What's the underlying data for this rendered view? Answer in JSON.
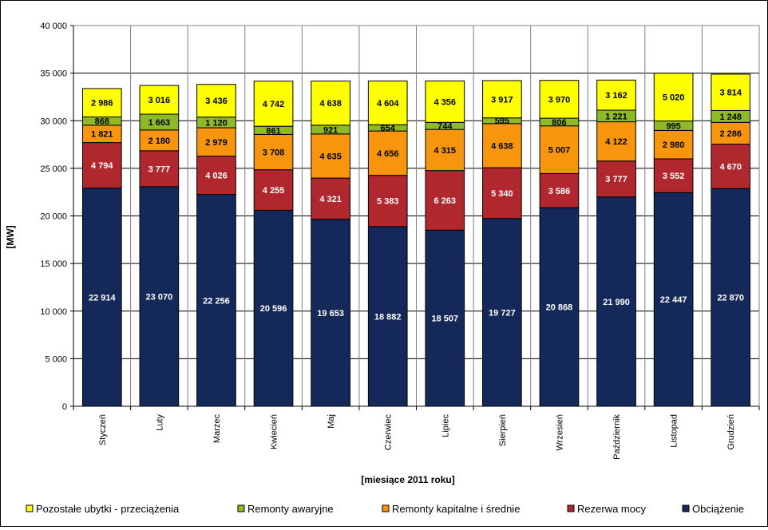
{
  "chart_data": {
    "type": "bar",
    "stacked": true,
    "xlabel": "[miesiące 2011  roku]",
    "ylabel": "[MW]",
    "ylim": [
      0,
      40000
    ],
    "yticks": [
      0,
      5000,
      10000,
      15000,
      20000,
      25000,
      30000,
      35000,
      40000
    ],
    "ytick_labels": [
      "0",
      "5 000",
      "10 000",
      "15 000",
      "20 000",
      "25 000",
      "30 000",
      "35 000",
      "40 000"
    ],
    "grid": true,
    "legend_position": "bottom",
    "categories": [
      "Styczeń",
      "Luty",
      "Marzec",
      "Kwiecień",
      "Maj",
      "Czerwiec",
      "Lipiec",
      "Sierpień",
      "Wrzesień",
      "Październik",
      "Listopad",
      "Grudzień"
    ],
    "series": [
      {
        "name": "Obciążenie",
        "color": "#14295a",
        "label_color": "#ffffff",
        "values": [
          22914,
          23070,
          22256,
          20596,
          19653,
          18882,
          18507,
          19727,
          20868,
          21990,
          22447,
          22870
        ],
        "labels": [
          "22 914",
          "23 070",
          "22 256",
          "20 596",
          "19 653",
          "18 882",
          "18 507",
          "19 727",
          "20 868",
          "21 990",
          "22 447",
          "22 870"
        ]
      },
      {
        "name": "Rezerwa mocy",
        "color": "#b0282d",
        "label_color": "#ffffff",
        "values": [
          4794,
          3777,
          4026,
          4255,
          4321,
          5383,
          6263,
          5340,
          3586,
          3777,
          3552,
          4670
        ],
        "labels": [
          "4 794",
          "3 777",
          "4 026",
          "4 255",
          "4 321",
          "5 383",
          "6 263",
          "5 340",
          "3 586",
          "3 777",
          "3 552",
          "4 670"
        ]
      },
      {
        "name": "Remonty kapitalne i średnie",
        "color": "#f7950f",
        "label_color": "#000000",
        "values": [
          1821,
          2180,
          2979,
          3708,
          4635,
          4656,
          4315,
          4638,
          5007,
          4122,
          2980,
          2286
        ],
        "labels": [
          "1 821",
          "2 180",
          "2 979",
          "3 708",
          "4 635",
          "4 656",
          "4 315",
          "4 638",
          "5 007",
          "4 122",
          "2 980",
          "2 286"
        ]
      },
      {
        "name": "Remonty awaryjne",
        "color": "#8dba26",
        "label_color": "#000000",
        "values": [
          868,
          1663,
          1120,
          861,
          921,
          654,
          744,
          595,
          806,
          1221,
          995,
          1248
        ],
        "labels": [
          "868",
          "1 663",
          "1 120",
          "861",
          "921",
          "654",
          "744",
          "595",
          "806",
          "1 221",
          "995",
          "1 248"
        ]
      },
      {
        "name": "Pozostałe ubytki - przeciążenia",
        "color": "#ffff00",
        "label_color": "#000000",
        "values": [
          2986,
          3016,
          3436,
          4742,
          4638,
          4604,
          4356,
          3917,
          3970,
          3162,
          5020,
          3814
        ],
        "labels": [
          "2 986",
          "3 016",
          "3 436",
          "4 742",
          "4 638",
          "4 604",
          "4 356",
          "3 917",
          "3 970",
          "3 162",
          "5 020",
          "3 814"
        ]
      }
    ],
    "legend_order": [
      "Pozostałe ubytki - przeciążenia",
      "Remonty awaryjne",
      "Remonty kapitalne i średnie",
      "Rezerwa mocy",
      "Obciążenie"
    ]
  }
}
